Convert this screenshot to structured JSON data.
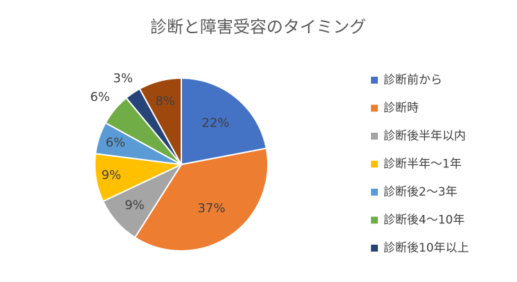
{
  "chart_data": {
    "type": "pie",
    "title": "診断と障害受容のタイミング",
    "categories": [
      "診断前から",
      "診断時",
      "診断後半年以内",
      "診断半年〜1年",
      "診断後2〜3年",
      "診断後4〜10年",
      "診断後10年以上",
      null
    ],
    "values": [
      22,
      37,
      9,
      9,
      6,
      6,
      3,
      8
    ],
    "value_labels": [
      "22%",
      "37%",
      "9%",
      "9%",
      "6%",
      "6%",
      "3%",
      "8%"
    ],
    "colors": [
      "#4472c4",
      "#ed7d31",
      "#a5a5a5",
      "#ffc000",
      "#5b9bd5",
      "#70ad47",
      "#264478",
      "#9e480e"
    ],
    "legend": "right"
  }
}
